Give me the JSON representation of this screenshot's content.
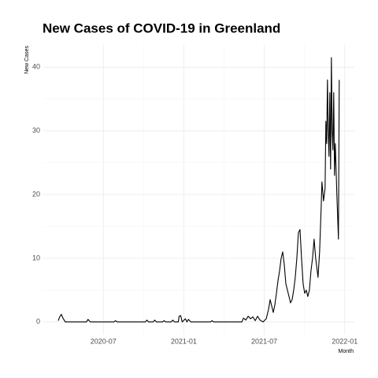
{
  "chart_data": {
    "type": "line",
    "title": "New Cases of COVID-19 in Greenland",
    "x_label": "Month",
    "y_label": "New Cases",
    "x": [
      2020.2195,
      2020.2293,
      2020.239,
      2020.2488,
      2020.2634,
      2020.3951,
      2020.4049,
      2020.4195,
      2020.5659,
      2020.5756,
      2020.5854,
      2020.761,
      2020.7707,
      2020.7805,
      2020.8098,
      2020.8195,
      2020.8293,
      2020.8683,
      2020.878,
      2020.8878,
      2020.922,
      2020.9317,
      2020.9415,
      2020.9659,
      2020.9707,
      2020.9805,
      2020.9902,
      2021.0098,
      2021.0195,
      2021.0293,
      2021.0439,
      2021.1659,
      2021.1756,
      2021.1854,
      2021.361,
      2021.3707,
      2021.3854,
      2021.4,
      2021.4146,
      2021.4293,
      2021.4439,
      2021.4585,
      2021.4732,
      2021.4927,
      2021.5122,
      2021.5268,
      2021.5366,
      2021.5463,
      2021.5561,
      2021.5659,
      2021.5756,
      2021.5854,
      2021.5951,
      2021.6049,
      2021.6146,
      2021.6244,
      2021.6341,
      2021.6439,
      2021.6537,
      2021.6634,
      2021.6732,
      2021.6829,
      2021.6927,
      2021.7024,
      2021.7122,
      2021.722,
      2021.7317,
      2021.7415,
      2021.7512,
      2021.761,
      2021.7707,
      2021.7805,
      2021.7902,
      2021.8,
      2021.8098,
      2021.8195,
      2021.8293,
      2021.8341,
      2021.8439,
      2021.8537,
      2021.8585,
      2021.8683,
      2021.878,
      2021.8829,
      2021.8878,
      2021.8927,
      2021.8976,
      2021.9024,
      2021.9073,
      2021.9122,
      2021.9171,
      2021.922,
      2021.9268,
      2021.9317,
      2021.9366,
      2021.9415,
      2021.9512,
      2021.961,
      2021.9659
    ],
    "series": [
      {
        "name": "New Cases",
        "color": "#000000",
        "values": [
          0.2,
          0.8,
          1.2,
          0.6,
          0,
          0,
          0.4,
          0,
          0,
          0.2,
          0,
          0,
          0.3,
          0,
          0,
          0.3,
          0,
          0,
          0.2,
          0,
          0,
          0.3,
          0,
          0,
          0.9,
          1,
          0,
          0.5,
          0,
          0.4,
          0,
          0,
          0.2,
          0,
          0,
          0.6,
          0.3,
          0.9,
          0.5,
          0.8,
          0.2,
          0.9,
          0.3,
          0,
          0.5,
          2,
          3.5,
          2.5,
          1.5,
          2.7,
          4.5,
          6.5,
          8,
          10,
          11,
          9,
          6,
          5,
          4,
          3,
          3.5,
          5,
          7,
          10,
          14,
          14.5,
          10,
          6,
          4.5,
          5,
          4,
          5,
          8,
          10,
          13,
          10,
          8,
          7,
          11,
          18,
          22,
          19,
          21,
          31.5,
          28,
          38,
          30,
          26,
          36,
          24,
          41.5,
          30,
          27,
          36,
          23,
          28,
          20,
          13,
          38
        ]
      }
    ],
    "xlim": [
      2020.127,
      2022.06
    ],
    "xticks": [
      {
        "value": 2020.5,
        "label": "2020-07"
      },
      {
        "value": 2021.0,
        "label": "2021-01"
      },
      {
        "value": 2021.5,
        "label": "2021-07"
      },
      {
        "value": 2022.0,
        "label": "2022-01"
      }
    ],
    "ylim": [
      -2,
      43.5
    ],
    "yticks": [
      0,
      10,
      20,
      30,
      40
    ],
    "grid": true
  }
}
